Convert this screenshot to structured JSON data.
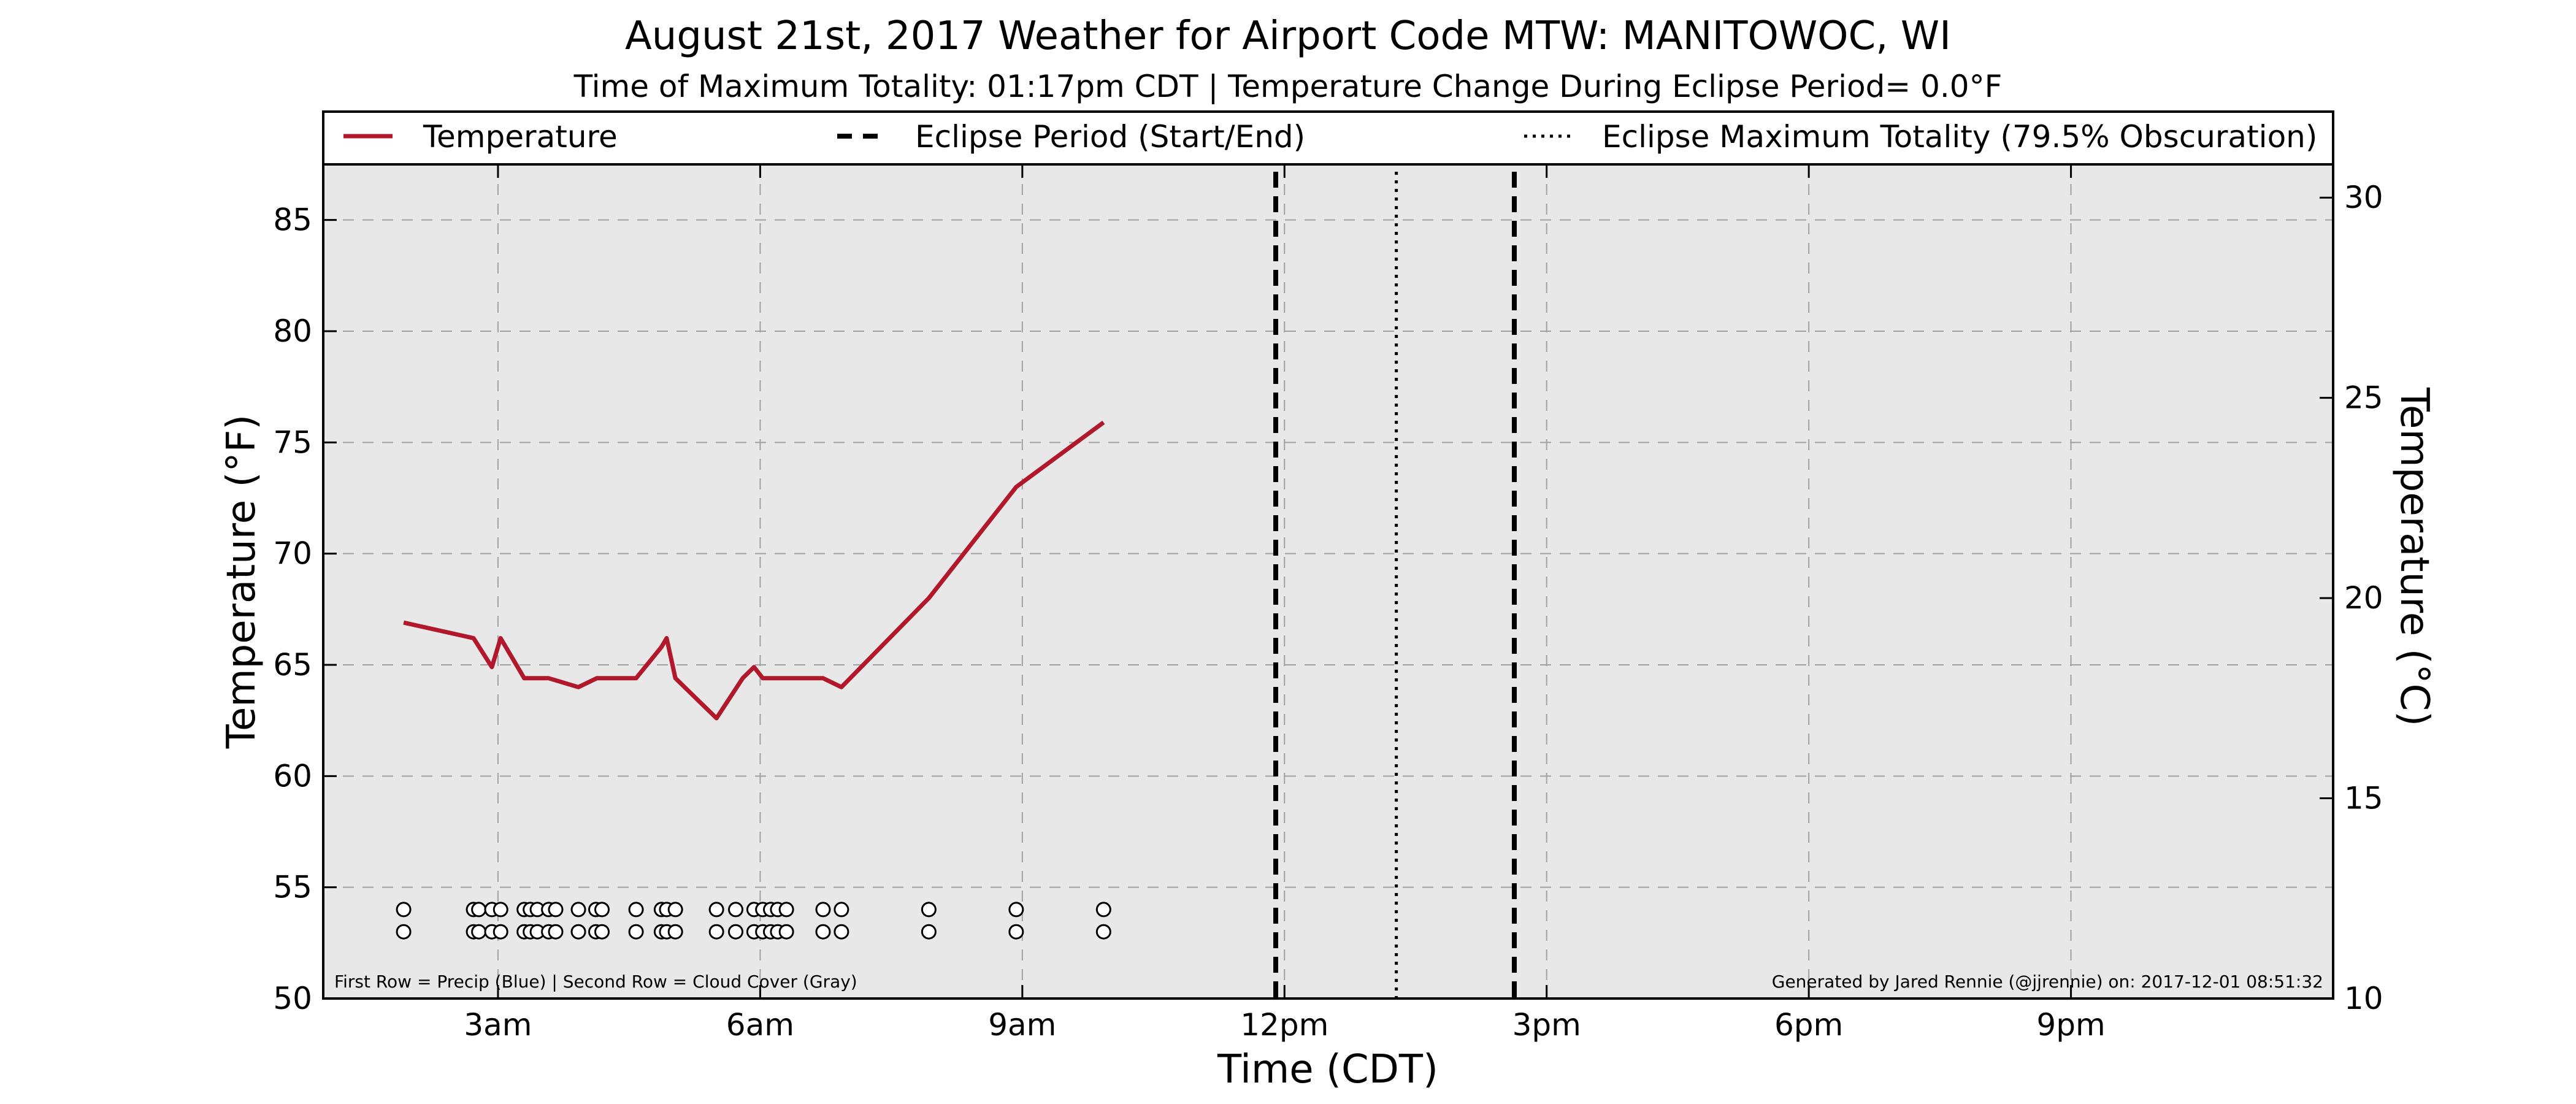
{
  "chart_data": {
    "type": "line",
    "title": "August 21st, 2017 Weather for Airport Code MTW: MANITOWOC, WI",
    "subtitle": "Time of Maximum Totality: 01:17pm CDT | Temperature Change During Eclipse Period= 0.0°F",
    "xlabel": "Time (CDT)",
    "ylabel": "Temperature (°F)",
    "ylabel_right": "Temperature (°C)",
    "xlim": [
      1.0,
      24.0
    ],
    "ylim": [
      50,
      87.5
    ],
    "ylim_right": [
      10,
      30.83
    ],
    "x_ticks": [
      {
        "value": 3,
        "label": "3am"
      },
      {
        "value": 6,
        "label": "6am"
      },
      {
        "value": 9,
        "label": "9am"
      },
      {
        "value": 12,
        "label": "12pm"
      },
      {
        "value": 15,
        "label": "3pm"
      },
      {
        "value": 18,
        "label": "6pm"
      },
      {
        "value": 21,
        "label": "9pm"
      }
    ],
    "y_ticks": [
      {
        "value": 50,
        "label": "50"
      },
      {
        "value": 55,
        "label": "55"
      },
      {
        "value": 60,
        "label": "60"
      },
      {
        "value": 65,
        "label": "65"
      },
      {
        "value": 70,
        "label": "70"
      },
      {
        "value": 75,
        "label": "75"
      },
      {
        "value": 80,
        "label": "80"
      },
      {
        "value": 85,
        "label": "85"
      }
    ],
    "y_ticks_right": [
      {
        "value": 10,
        "label": "10"
      },
      {
        "value": 15,
        "label": "15"
      },
      {
        "value": 20,
        "label": "20"
      },
      {
        "value": 25,
        "label": "25"
      },
      {
        "value": 30,
        "label": "30"
      }
    ],
    "grid": true,
    "legend": {
      "placement": "top",
      "entries": [
        {
          "label": "Temperature",
          "style": "solid"
        },
        {
          "label": "Eclipse Period (Start/End)",
          "style": "dashed"
        },
        {
          "label": "Eclipse Maximum Totality (79.5% Obscuration)",
          "style": "dotted"
        }
      ]
    },
    "series": [
      {
        "name": "Temperature",
        "color": "#b2182b",
        "x": [
          1.92,
          2.72,
          2.93,
          3.03,
          3.3,
          3.58,
          3.92,
          4.13,
          4.58,
          4.87,
          4.93,
          5.03,
          5.5,
          5.8,
          5.93,
          6.03,
          6.5,
          6.72,
          6.93,
          7.93,
          8.93,
          9.93
        ],
        "y": [
          66.9,
          66.2,
          64.9,
          66.2,
          64.4,
          64.4,
          64.0,
          64.4,
          64.4,
          65.8,
          66.2,
          64.4,
          62.6,
          64.4,
          64.9,
          64.4,
          64.4,
          64.4,
          64.0,
          68.0,
          73.0,
          75.9
        ]
      }
    ],
    "eclipse": {
      "start": 11.9,
      "max_totality": 13.28,
      "end": 14.63
    },
    "observation_markers": {
      "row1_value": 54,
      "row2_value": 53,
      "row1_color": "#ffffff",
      "row2_color": "#ffffff",
      "x": [
        1.92,
        2.72,
        2.78,
        2.93,
        3.03,
        3.3,
        3.37,
        3.45,
        3.58,
        3.66,
        3.92,
        4.12,
        4.19,
        4.58,
        4.87,
        4.93,
        5.03,
        5.5,
        5.72,
        5.93,
        6.03,
        6.12,
        6.2,
        6.3,
        6.72,
        6.93,
        7.93,
        8.93,
        9.93
      ]
    },
    "footnote_left": "First Row = Precip (Blue) | Second Row = Cloud Cover (Gray)",
    "footnote_right": "Generated by Jared Rennie (@jjrennie) on: 2017-12-01 08:51:32"
  }
}
